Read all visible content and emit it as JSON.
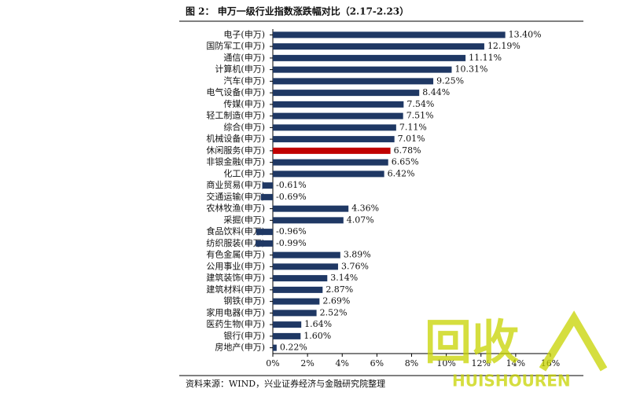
{
  "chart_data": {
    "type": "hbar",
    "title": "图 2： 申万一级行业指数涨跌幅对比（2.17-2.23）",
    "source": "资料来源：WIND，兴业证券经济与金融研究院整理",
    "watermark": [
      "回收",
      "HUISHOUREN"
    ],
    "categories": [
      "电子(申万)",
      "国防军工(申万)",
      "通信(申万)",
      "计算机(申万)",
      "汽车(申万)",
      "电气设备(申万)",
      "传媒(申万)",
      "轻工制造(申万)",
      "综合(申万)",
      "机械设备(申万)",
      "休闲服务(申万)",
      "非银金融(申万)",
      "化工(申万)",
      "商业贸易(申万)",
      "交通运输(申万)",
      "农林牧渔(申万)",
      "采掘(申万)",
      "食品饮料(申万)",
      "纺织服装(申万)",
      "有色金属(申万)",
      "公用事业(申万)",
      "建筑装饰(申万)",
      "建筑材料(申万)",
      "钢铁(申万)",
      "家用电器(申万)",
      "医药生物(申万)",
      "银行(申万)",
      "房地产(申万)"
    ],
    "values": [
      13.4,
      12.19,
      11.11,
      10.31,
      9.25,
      8.44,
      7.54,
      7.51,
      7.11,
      7.01,
      6.78,
      6.65,
      6.42,
      -0.61,
      -0.69,
      4.36,
      4.07,
      -0.96,
      -0.99,
      3.89,
      3.76,
      3.14,
      2.87,
      2.69,
      2.52,
      1.64,
      1.6,
      0.22
    ],
    "value_labels": [
      "13.40%",
      "12.19%",
      "11.11%",
      "10.31%",
      "9.25%",
      "8.44%",
      "7.54%",
      "7.51%",
      "7.11%",
      "7.01%",
      "6.78%",
      "6.65%",
      "6.42%",
      "-0.61%",
      "-0.69%",
      "4.36%",
      "4.07%",
      "-0.96%",
      "-0.99%",
      "3.89%",
      "3.76%",
      "3.14%",
      "2.87%",
      "2.69%",
      "2.52%",
      "1.64%",
      "1.60%",
      "0.22%"
    ],
    "colors": [
      "#1f3864",
      "#1f3864",
      "#1f3864",
      "#1f3864",
      "#1f3864",
      "#1f3864",
      "#1f3864",
      "#1f3864",
      "#1f3864",
      "#1f3864",
      "#c00000",
      "#1f3864",
      "#1f3864",
      "#1f3864",
      "#1f3864",
      "#1f3864",
      "#1f3864",
      "#1f3864",
      "#1f3864",
      "#1f3864",
      "#1f3864",
      "#1f3864",
      "#1f3864",
      "#1f3864",
      "#1f3864",
      "#1f3864",
      "#1f3864",
      "#1f3864"
    ],
    "xlim": [
      0,
      16
    ],
    "xticks": [
      {
        "value": 0,
        "label": "0%"
      },
      {
        "value": 2,
        "label": "2%"
      },
      {
        "value": 4,
        "label": "4%"
      },
      {
        "value": 6,
        "label": "6%"
      },
      {
        "value": 8,
        "label": "8%"
      },
      {
        "value": 10,
        "label": "10%"
      },
      {
        "value": 12,
        "label": "12%"
      },
      {
        "value": 14,
        "label": "14%"
      },
      {
        "value": 16,
        "label": "16%"
      }
    ]
  }
}
